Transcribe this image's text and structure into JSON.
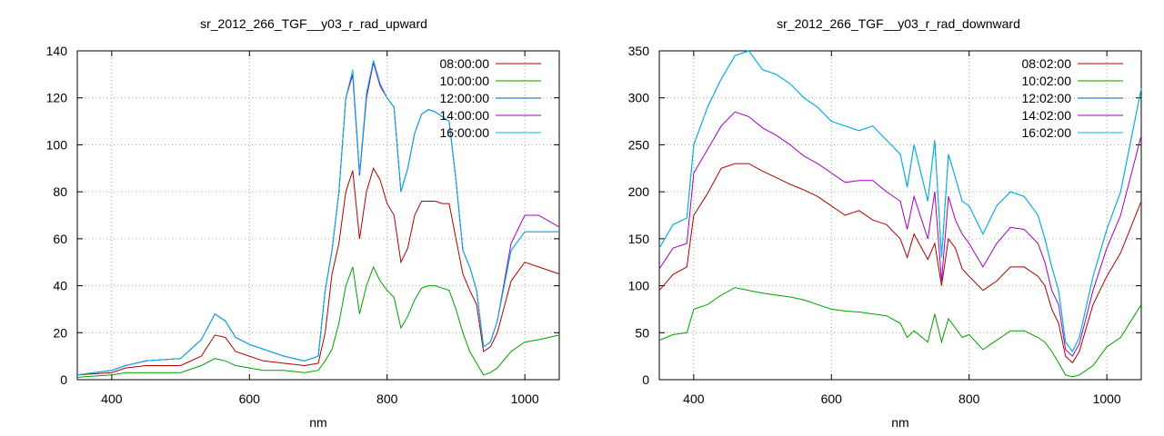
{
  "chart_data": [
    {
      "type": "line",
      "title": "sr_2012_266_TGF__y03_r_rad_upward",
      "xlabel": "nm",
      "ylabel": "",
      "xlim": [
        350,
        1050
      ],
      "ylim": [
        0,
        140
      ],
      "xticks": [
        400,
        600,
        800,
        1000
      ],
      "yticks": [
        0,
        20,
        40,
        60,
        80,
        100,
        120,
        140
      ],
      "grid": true,
      "legend": "top-right",
      "x": [
        350,
        400,
        420,
        450,
        500,
        530,
        550,
        565,
        580,
        600,
        620,
        650,
        680,
        700,
        710,
        720,
        730,
        740,
        750,
        760,
        770,
        780,
        790,
        800,
        810,
        820,
        830,
        840,
        850,
        860,
        870,
        880,
        890,
        900,
        910,
        920,
        930,
        940,
        950,
        960,
        980,
        1000,
        1020,
        1050
      ],
      "series": [
        {
          "name": "08:00:00",
          "color": "#b00000",
          "values": [
            2,
            3,
            5,
            6,
            6,
            10,
            19,
            18,
            12,
            10,
            8,
            7,
            6,
            7,
            20,
            45,
            58,
            80,
            89,
            60,
            80,
            90,
            85,
            75,
            70,
            50,
            56,
            70,
            76,
            76,
            76,
            75,
            75,
            60,
            45,
            38,
            32,
            12,
            14,
            20,
            42,
            50,
            48,
            45
          ]
        },
        {
          "name": "10:00:00",
          "color": "#00a000",
          "values": [
            1,
            2,
            3,
            3,
            3,
            6,
            9,
            8,
            6,
            5,
            4,
            4,
            3,
            4,
            8,
            13,
            24,
            40,
            48,
            28,
            40,
            48,
            42,
            38,
            35,
            22,
            27,
            34,
            39,
            40,
            40,
            39,
            38,
            30,
            20,
            12,
            7,
            2,
            3,
            5,
            12,
            16,
            17,
            19
          ]
        },
        {
          "name": "12:00:00",
          "color": "#0066cc",
          "values": [
            2,
            4,
            6,
            8,
            9,
            17,
            28,
            25,
            18,
            15,
            13,
            10,
            8,
            10,
            38,
            55,
            80,
            120,
            130,
            87,
            120,
            135,
            125,
            120,
            116,
            80,
            90,
            105,
            113,
            115,
            114,
            112,
            110,
            85,
            55,
            48,
            38,
            14,
            16,
            25,
            55,
            63,
            63,
            63
          ]
        },
        {
          "name": "14:00:00",
          "color": "#a000c0",
          "values": [
            2,
            4,
            6,
            8,
            9,
            17,
            28,
            25,
            18,
            15,
            13,
            10,
            8,
            10,
            38,
            55,
            80,
            120,
            130,
            87,
            120,
            135,
            125,
            120,
            116,
            80,
            90,
            105,
            113,
            115,
            114,
            112,
            110,
            85,
            55,
            48,
            38,
            14,
            16,
            25,
            58,
            70,
            70,
            65
          ]
        },
        {
          "name": "16:00:00",
          "color": "#00b8e0",
          "values": [
            2,
            4,
            6,
            8,
            9,
            17,
            28,
            25,
            18,
            15,
            13,
            10,
            8,
            10,
            38,
            55,
            80,
            120,
            132,
            88,
            122,
            136,
            126,
            120,
            116,
            80,
            90,
            105,
            113,
            115,
            114,
            112,
            110,
            85,
            55,
            48,
            38,
            14,
            16,
            25,
            55,
            63,
            63,
            63
          ]
        }
      ]
    },
    {
      "type": "line",
      "title": "sr_2012_266_TGF__y03_r_rad_downward",
      "xlabel": "nm",
      "ylabel": "",
      "xlim": [
        350,
        1050
      ],
      "ylim": [
        0,
        350
      ],
      "xticks": [
        400,
        600,
        800,
        1000
      ],
      "yticks": [
        0,
        50,
        100,
        150,
        200,
        250,
        300,
        350
      ],
      "grid": true,
      "legend": "top-right",
      "x": [
        350,
        370,
        390,
        400,
        420,
        440,
        460,
        480,
        500,
        520,
        540,
        560,
        580,
        600,
        620,
        640,
        660,
        680,
        700,
        710,
        720,
        740,
        750,
        760,
        770,
        780,
        790,
        800,
        820,
        840,
        860,
        880,
        900,
        910,
        920,
        930,
        940,
        950,
        960,
        980,
        1000,
        1020,
        1050
      ],
      "series": [
        {
          "name": "08:02:00",
          "color": "#b00000",
          "values": [
            95,
            112,
            120,
            175,
            198,
            225,
            230,
            230,
            222,
            215,
            208,
            202,
            195,
            185,
            175,
            180,
            170,
            165,
            150,
            130,
            155,
            128,
            145,
            100,
            150,
            140,
            118,
            110,
            95,
            105,
            120,
            120,
            110,
            100,
            75,
            60,
            25,
            18,
            30,
            80,
            110,
            135,
            190
          ]
        },
        {
          "name": "10:02:00",
          "color": "#00a000",
          "values": [
            42,
            48,
            50,
            75,
            80,
            90,
            98,
            95,
            92,
            90,
            88,
            85,
            80,
            75,
            73,
            72,
            70,
            68,
            60,
            45,
            52,
            40,
            70,
            40,
            65,
            55,
            45,
            48,
            32,
            42,
            52,
            52,
            45,
            40,
            30,
            18,
            5,
            3,
            5,
            15,
            35,
            45,
            80
          ]
        },
        {
          "name": "12:02:00",
          "color": "#0066cc",
          "values": [
            140,
            165,
            172,
            250,
            290,
            320,
            345,
            350,
            330,
            325,
            315,
            300,
            290,
            275,
            270,
            265,
            270,
            255,
            240,
            205,
            250,
            190,
            255,
            130,
            240,
            215,
            190,
            185,
            155,
            185,
            200,
            195,
            175,
            150,
            120,
            95,
            40,
            30,
            45,
            110,
            160,
            200,
            310
          ]
        },
        {
          "name": "14:02:00",
          "color": "#a000c0",
          "values": [
            118,
            140,
            145,
            220,
            245,
            270,
            285,
            280,
            268,
            260,
            250,
            238,
            230,
            220,
            210,
            212,
            212,
            200,
            190,
            160,
            195,
            150,
            200,
            105,
            195,
            170,
            155,
            145,
            120,
            145,
            162,
            160,
            145,
            125,
            95,
            80,
            32,
            25,
            38,
            95,
            140,
            175,
            260
          ]
        },
        {
          "name": "16:02:00",
          "color": "#00b8e0",
          "values": [
            140,
            165,
            172,
            250,
            290,
            320,
            345,
            350,
            330,
            325,
            315,
            300,
            290,
            275,
            270,
            265,
            270,
            255,
            240,
            205,
            250,
            190,
            255,
            130,
            240,
            215,
            190,
            185,
            155,
            185,
            200,
            195,
            175,
            150,
            120,
            95,
            40,
            30,
            45,
            110,
            160,
            200,
            310
          ]
        }
      ]
    }
  ]
}
